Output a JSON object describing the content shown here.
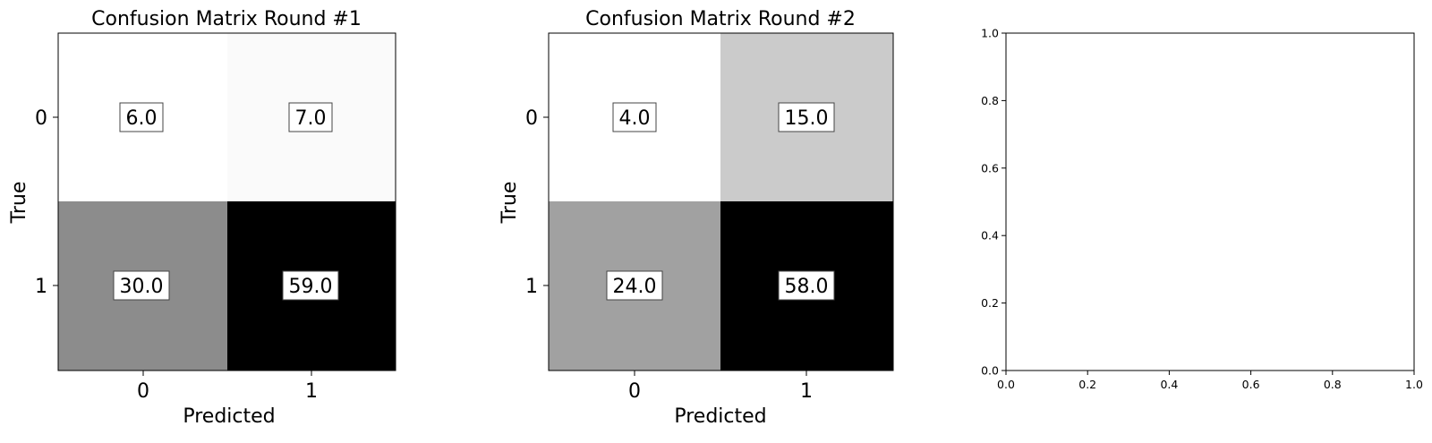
{
  "chart_data": [
    {
      "type": "heatmap",
      "title": "Confusion Matrix Round #1",
      "xlabel": "Predicted",
      "ylabel": "True",
      "x_categories": [
        "0",
        "1"
      ],
      "y_categories": [
        "0",
        "1"
      ],
      "colormap": "gray_r",
      "values": [
        [
          6.0,
          7.0
        ],
        [
          30.0,
          59.0
        ]
      ],
      "labels": [
        [
          "6.0",
          "7.0"
        ],
        [
          "30.0",
          "59.0"
        ]
      ]
    },
    {
      "type": "heatmap",
      "title": "Confusion Matrix Round #2",
      "xlabel": "Predicted",
      "ylabel": "True",
      "x_categories": [
        "0",
        "1"
      ],
      "y_categories": [
        "0",
        "1"
      ],
      "colormap": "gray_r",
      "values": [
        [
          4.0,
          15.0
        ],
        [
          24.0,
          58.0
        ]
      ],
      "labels": [
        [
          "4.0",
          "15.0"
        ],
        [
          "24.0",
          "58.0"
        ]
      ]
    },
    {
      "type": "scatter",
      "title": "",
      "xlabel": "",
      "ylabel": "",
      "xlim": [
        0.0,
        1.0
      ],
      "ylim": [
        0.0,
        1.0
      ],
      "x_ticks": [
        "0.0",
        "0.2",
        "0.4",
        "0.6",
        "0.8",
        "1.0"
      ],
      "y_ticks": [
        "0.0",
        "0.2",
        "0.4",
        "0.6",
        "0.8",
        "1.0"
      ],
      "series": []
    }
  ],
  "colors": {
    "max_cell": "#000000",
    "min_cell": "#ffffff",
    "axes": "#000000"
  }
}
